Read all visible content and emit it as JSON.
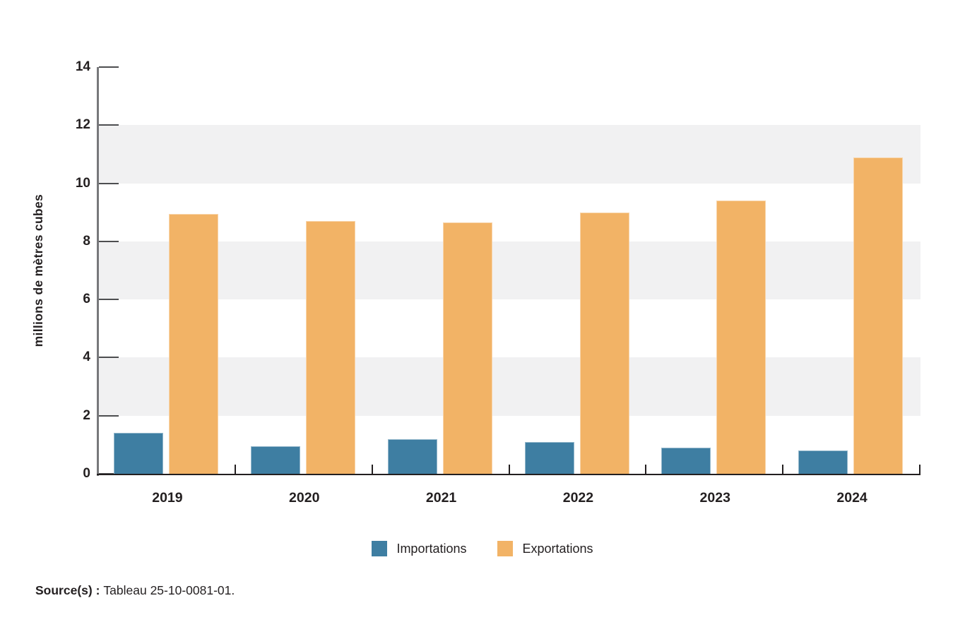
{
  "chart_data": {
    "type": "bar",
    "title": "",
    "xlabel": "",
    "ylabel": "millions de mètres cubes",
    "categories": [
      "2019",
      "2020",
      "2021",
      "2022",
      "2023",
      "2024"
    ],
    "series": [
      {
        "name": "Importations",
        "color": "#3e7ea2",
        "values": [
          1.4,
          0.95,
          1.2,
          1.1,
          0.9,
          0.8
        ]
      },
      {
        "name": "Exportations",
        "color": "#f2b366",
        "values": [
          8.95,
          8.7,
          8.65,
          9.0,
          9.4,
          10.9
        ]
      }
    ],
    "ylim": [
      0,
      14
    ],
    "yticks": [
      0,
      2,
      4,
      6,
      8,
      10,
      12,
      14
    ],
    "band_ranges": [
      [
        2,
        4
      ],
      [
        6,
        8
      ],
      [
        10,
        12
      ]
    ],
    "band_color": "#f1f1f2",
    "legend_position": "bottom",
    "grid": "banded-rows"
  },
  "source": {
    "prefix": "Source(s) :",
    "text": "Tableau 25-10-0081-01."
  },
  "colors": {
    "y_axis_line": "#77787b",
    "x_axis_line": "#231f20",
    "tick": "#4d4e50",
    "text": "#231f20",
    "band": "#f1f1f2"
  }
}
